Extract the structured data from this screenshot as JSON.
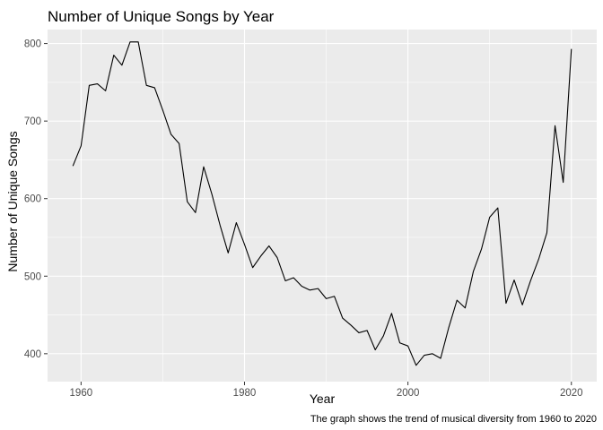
{
  "chart_data": {
    "type": "line",
    "title": "Number of Unique Songs by Year",
    "xlabel": "Year",
    "ylabel": "Number of Unique Songs",
    "caption": "The graph shows the trend of musical diversity from 1960 to 2020",
    "xlim": [
      1955.9,
      2023.1
    ],
    "ylim": [
      364,
      818
    ],
    "x_ticks": [
      1960,
      1980,
      2000,
      2020
    ],
    "y_ticks": [
      400,
      500,
      600,
      700,
      800
    ],
    "grid": true,
    "legend": "none",
    "colors": {
      "panel": "#ebebeb",
      "grid_major": "#ffffff",
      "line": "#000000"
    },
    "series": [
      {
        "x": [
          1959,
          1960,
          1961,
          1962,
          1963,
          1964,
          1965,
          1966,
          1967,
          1968,
          1969,
          1970,
          1971,
          1972,
          1973,
          1974,
          1975,
          1976,
          1977,
          1978,
          1979,
          1980,
          1981,
          1982,
          1983,
          1984,
          1985,
          1986,
          1987,
          1988,
          1989,
          1990,
          1991,
          1992,
          1993,
          1994,
          1995,
          1996,
          1997,
          1998,
          1999,
          2000,
          2001,
          2002,
          2003,
          2004,
          2005,
          2006,
          2007,
          2008,
          2009,
          2010,
          2011,
          2012,
          2013,
          2014,
          2015,
          2016,
          2017,
          2018,
          2019,
          2020
        ],
        "y": [
          642,
          668,
          746,
          748,
          739,
          785,
          772,
          802,
          802,
          746,
          743,
          714,
          683,
          671,
          596,
          582,
          641,
          606,
          566,
          530,
          569,
          541,
          511,
          526,
          539,
          524,
          494,
          498,
          487,
          482,
          484,
          471,
          474,
          446,
          437,
          427,
          430,
          405,
          423,
          452,
          414,
          410,
          385,
          398,
          400,
          394,
          434,
          469,
          459,
          506,
          535,
          576,
          588,
          465,
          495,
          463,
          494,
          522,
          556,
          694,
          621,
          793
        ]
      }
    ]
  }
}
